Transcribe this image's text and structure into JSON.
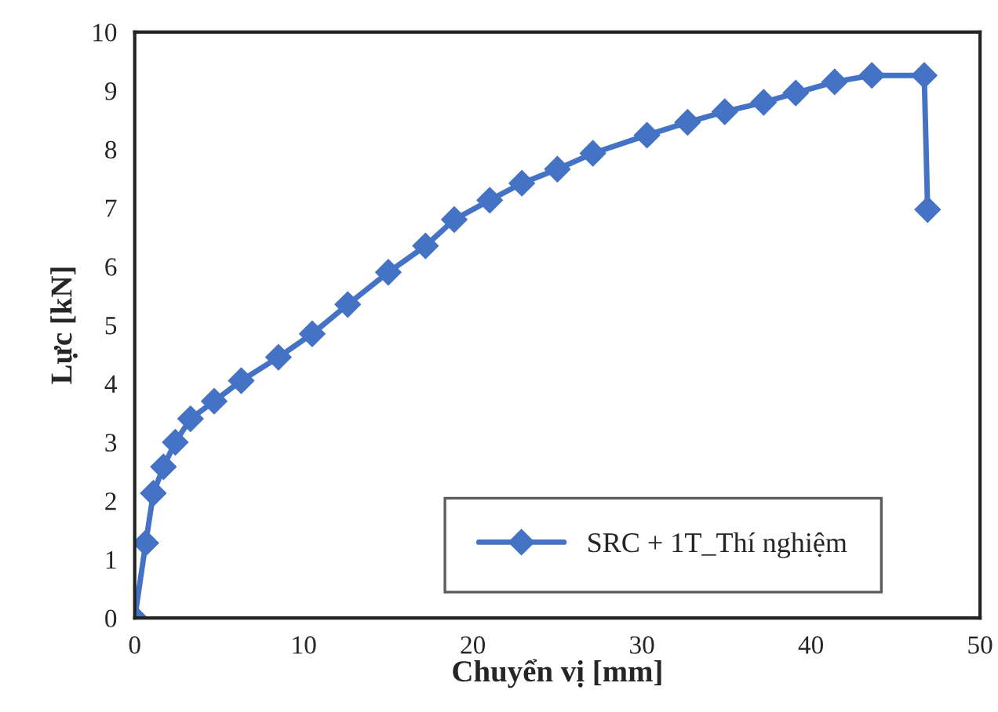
{
  "chart_data": {
    "type": "line",
    "xlabel": "Chuyển vị [mm]",
    "ylabel": "Lực [kN]",
    "x": [
      0,
      0.65,
      1.1,
      1.7,
      2.4,
      3.3,
      4.7,
      6.3,
      8.5,
      10.5,
      12.6,
      15.0,
      17.2,
      18.9,
      21.0,
      22.9,
      25.0,
      27.1,
      30.3,
      32.7,
      34.9,
      37.2,
      39.1,
      41.4,
      43.6,
      46.7,
      46.9
    ],
    "series": [
      {
        "name": "SRC + 1T_Thí nghiệm",
        "color": "#4472c4",
        "values": [
          0,
          1.28,
          2.13,
          2.58,
          3.0,
          3.4,
          3.7,
          4.05,
          4.45,
          4.85,
          5.35,
          5.9,
          6.35,
          6.8,
          7.13,
          7.42,
          7.66,
          7.93,
          8.24,
          8.46,
          8.64,
          8.8,
          8.96,
          9.15,
          9.26,
          9.26,
          6.97
        ]
      }
    ],
    "xlim": [
      0,
      50
    ],
    "xticks": [
      0,
      10,
      20,
      30,
      40,
      50
    ],
    "ylim": [
      0,
      10
    ],
    "yticks": [
      0,
      1,
      2,
      3,
      4,
      5,
      6,
      7,
      8,
      9,
      10
    ],
    "grid": false,
    "legend": "bottom right",
    "marker": "diamond",
    "line_style": "solid"
  }
}
